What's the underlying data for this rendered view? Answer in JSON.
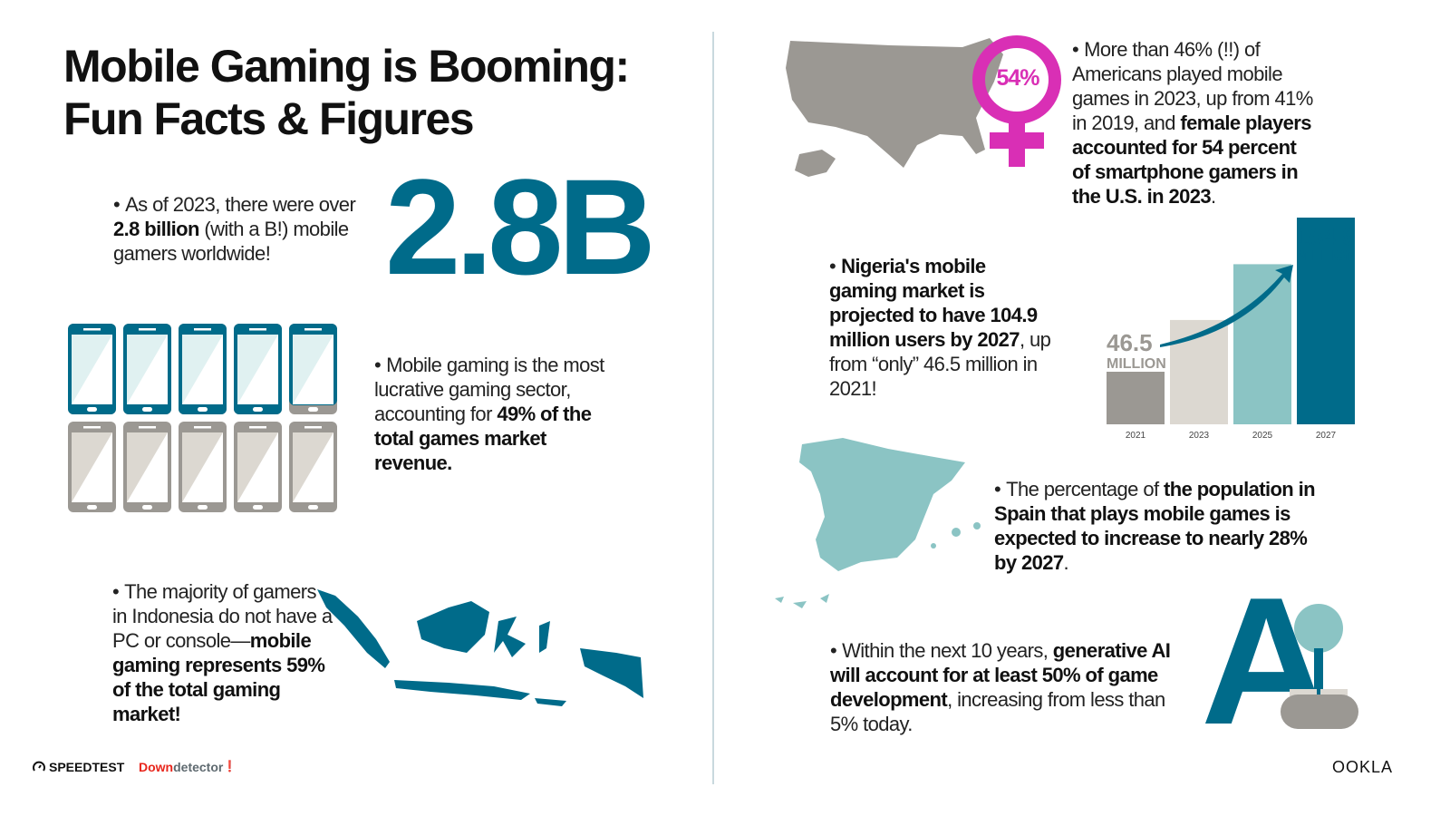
{
  "title": [
    "Mobile Gaming is Booming:",
    "Fun Facts & Figures"
  ],
  "colors": {
    "teal_dark": "#006b8a",
    "teal_light": "#8bc4c4",
    "gray": "#9b9893",
    "beige": "#dcd8d1",
    "magenta": "#d92fb5",
    "red": "#e8261c"
  },
  "facts": {
    "gamers": {
      "pre": "As of 2023, there were over ",
      "bold": "2.8 billion",
      "post": " (with a B!) mobile gamers worldwide!",
      "big_number": "2.8B"
    },
    "revenue": {
      "pre": "Mobile gaming is the most lucrative gaming sector, accounting for ",
      "bold": "49% of the total games market revenue.",
      "share": 0.49
    },
    "indonesia": {
      "pre": "The majority of gamers in Indonesia do not have a PC or console—",
      "bold": "mobile gaming represents 59% of the total gaming market!"
    },
    "usa": {
      "pre": "More than 46% (!!) of Americans played mobile games in 2023, up from 41% in 2019, and ",
      "bold": "female players accounted for 54 percent of smartphone gamers in the U.S. in 2023",
      "post": ".",
      "badge": "54%"
    },
    "nigeria": {
      "bold": "Nigeria's mobile gaming market is projected to have 104.9 million users by 2027",
      "post": ", up from “only” 46.5 million in 2021!"
    },
    "spain": {
      "pre": "The percentage of ",
      "bold": "the population in Spain that plays mobile games is expected to increase to nearly 28% by 2027",
      "post": "."
    },
    "ai": {
      "pre": "Within the next 10 years, ",
      "bold": "generative AI will account for at least 50% of game development",
      "post": ", increasing from less than 5% today.",
      "icon_text": "A"
    }
  },
  "chart_data": {
    "type": "bar",
    "categories": [
      "2021",
      "2023",
      "2025",
      "2027"
    ],
    "values": [
      46.5,
      66,
      87,
      104.9
    ],
    "unit": "MILLION",
    "data_labels": {
      "first": "46.5",
      "last": "104.9"
    },
    "colors": [
      "#9b9893",
      "#dcd8d1",
      "#8bc4c4",
      "#006b8a"
    ]
  },
  "logos": {
    "speedtest": "SPEEDTEST",
    "downdetector_red": "Down",
    "downdetector_gray": "detector",
    "ookla": "OOKLA"
  }
}
